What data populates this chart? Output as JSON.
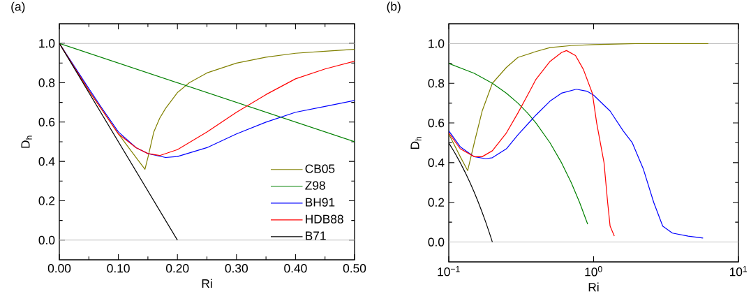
{
  "chart_data": [
    {
      "type": "line",
      "title": "(a)",
      "xlabel": "Ri",
      "ylabel": "D$_{h}$",
      "xlim": [
        0,
        0.5
      ],
      "ylim": [
        -0.1,
        1.1
      ],
      "xticks": [
        {
          "value": 0,
          "label": "0.00"
        },
        {
          "value": 0.1,
          "label": "0.10"
        },
        {
          "value": 0.2,
          "label": "0.20"
        },
        {
          "value": 0.3,
          "label": "0.30"
        },
        {
          "value": 0.4,
          "label": "0.40"
        },
        {
          "value": 0.5,
          "label": "0.50"
        }
      ],
      "yticks": [
        {
          "value": 0,
          "label": "0.0"
        },
        {
          "value": 0.2,
          "label": "0.2"
        },
        {
          "value": 0.4,
          "label": "0.4"
        },
        {
          "value": 0.6,
          "label": "0.6"
        },
        {
          "value": 0.8,
          "label": "0.8"
        },
        {
          "value": 1,
          "label": "1.0"
        }
      ],
      "ref_lines": [
        {
          "axis": "y",
          "value": 0,
          "color": "#c0c0c0"
        },
        {
          "axis": "y",
          "value": 1,
          "color": "#c0c0c0"
        }
      ],
      "legend": "bottom right",
      "series": [
        {
          "name": "CB05",
          "color": "#808000",
          "x": [
            0,
            0.05,
            0.1,
            0.13,
            0.145,
            0.15,
            0.16,
            0.17,
            0.18,
            0.2,
            0.22,
            0.25,
            0.3,
            0.35,
            0.4,
            0.45,
            0.5
          ],
          "values": [
            1,
            0.76,
            0.54,
            0.42,
            0.36,
            0.42,
            0.55,
            0.62,
            0.67,
            0.75,
            0.8,
            0.85,
            0.9,
            0.93,
            0.95,
            0.96,
            0.97
          ]
        },
        {
          "name": "Z98",
          "color": "#008000",
          "x": [
            0,
            0.5
          ],
          "values": [
            1,
            0.5
          ]
        },
        {
          "name": "BH91",
          "color": "#0000ff",
          "x": [
            0,
            0.05,
            0.07,
            0.1,
            0.13,
            0.15,
            0.18,
            0.2,
            0.25,
            0.3,
            0.35,
            0.4,
            0.45,
            0.5
          ],
          "values": [
            1,
            0.77,
            0.68,
            0.55,
            0.47,
            0.44,
            0.42,
            0.425,
            0.47,
            0.54,
            0.6,
            0.65,
            0.68,
            0.71
          ]
        },
        {
          "name": "HDB88",
          "color": "#ff0000",
          "x": [
            0,
            0.05,
            0.1,
            0.13,
            0.15,
            0.17,
            0.2,
            0.25,
            0.3,
            0.35,
            0.4,
            0.45,
            0.5
          ],
          "values": [
            1,
            0.76,
            0.54,
            0.47,
            0.44,
            0.43,
            0.46,
            0.55,
            0.65,
            0.74,
            0.82,
            0.87,
            0.91
          ]
        },
        {
          "name": "B71",
          "color": "#000000",
          "x": [
            0,
            0.2
          ],
          "values": [
            1,
            0
          ]
        }
      ]
    },
    {
      "type": "line",
      "title": "(b)",
      "xlabel": "Ri",
      "ylabel": "D$_{h}$",
      "log": "x",
      "xlim": [
        0.1,
        10
      ],
      "ylim": [
        -0.1,
        1.1
      ],
      "xticks": [
        {
          "value": 0.1,
          "label": "10$^{−1}$"
        },
        {
          "value": 1,
          "label": "10$^{0}$"
        },
        {
          "value": 10,
          "label": "10$^{1}$"
        }
      ],
      "yticks": [
        {
          "value": 0,
          "label": "0.0"
        },
        {
          "value": 0.2,
          "label": "0.2"
        },
        {
          "value": 0.4,
          "label": "0.4"
        },
        {
          "value": 0.6,
          "label": "0.6"
        },
        {
          "value": 0.8,
          "label": "0.8"
        },
        {
          "value": 1,
          "label": "1.0"
        }
      ],
      "ref_lines": [
        {
          "axis": "y",
          "value": 0,
          "color": "#c0c0c0"
        },
        {
          "axis": "y",
          "value": 1,
          "color": "#c0c0c0"
        }
      ],
      "series": [
        {
          "color": "#808000",
          "x": [
            0.1,
            0.12,
            0.135,
            0.15,
            0.17,
            0.2,
            0.25,
            0.3,
            0.4,
            0.5,
            0.7,
            1,
            2,
            4,
            6.2
          ],
          "values": [
            0.545,
            0.43,
            0.36,
            0.5,
            0.66,
            0.8,
            0.88,
            0.93,
            0.96,
            0.98,
            0.99,
            0.995,
            1,
            1,
            1
          ]
        },
        {
          "color": "#008000",
          "x": [
            0.1,
            0.15,
            0.2,
            0.25,
            0.3,
            0.35,
            0.4,
            0.5,
            0.6,
            0.7,
            0.8,
            0.91
          ],
          "values": [
            0.9,
            0.85,
            0.8,
            0.75,
            0.7,
            0.65,
            0.6,
            0.5,
            0.4,
            0.3,
            0.2,
            0.09
          ]
        },
        {
          "color": "#0000ff",
          "x": [
            0.1,
            0.12,
            0.15,
            0.18,
            0.2,
            0.25,
            0.3,
            0.4,
            0.5,
            0.6,
            0.76,
            0.9,
            1,
            1.3,
            1.6,
            1.85,
            2.2,
            2.6,
            3,
            3.5,
            4.5,
            5.7
          ],
          "values": [
            0.56,
            0.48,
            0.43,
            0.42,
            0.425,
            0.47,
            0.54,
            0.64,
            0.71,
            0.75,
            0.77,
            0.76,
            0.74,
            0.66,
            0.56,
            0.5,
            0.37,
            0.2,
            0.08,
            0.045,
            0.03,
            0.02
          ]
        },
        {
          "color": "#ff0000",
          "x": [
            0.1,
            0.12,
            0.15,
            0.17,
            0.2,
            0.25,
            0.3,
            0.35,
            0.4,
            0.5,
            0.6,
            0.65,
            0.75,
            0.85,
            0.98,
            1.05,
            1.18,
            1.25,
            1.3,
            1.39
          ],
          "values": [
            0.55,
            0.47,
            0.43,
            0.43,
            0.46,
            0.55,
            0.65,
            0.74,
            0.82,
            0.91,
            0.955,
            0.965,
            0.94,
            0.87,
            0.75,
            0.6,
            0.4,
            0.2,
            0.08,
            0.03
          ]
        },
        {
          "color": "#000000",
          "x": [
            0.1,
            0.11,
            0.12,
            0.13,
            0.14,
            0.15,
            0.16,
            0.17,
            0.18,
            0.19,
            0.2
          ],
          "values": [
            0.5,
            0.45,
            0.4,
            0.35,
            0.3,
            0.25,
            0.2,
            0.15,
            0.1,
            0.05,
            0
          ]
        }
      ]
    }
  ]
}
